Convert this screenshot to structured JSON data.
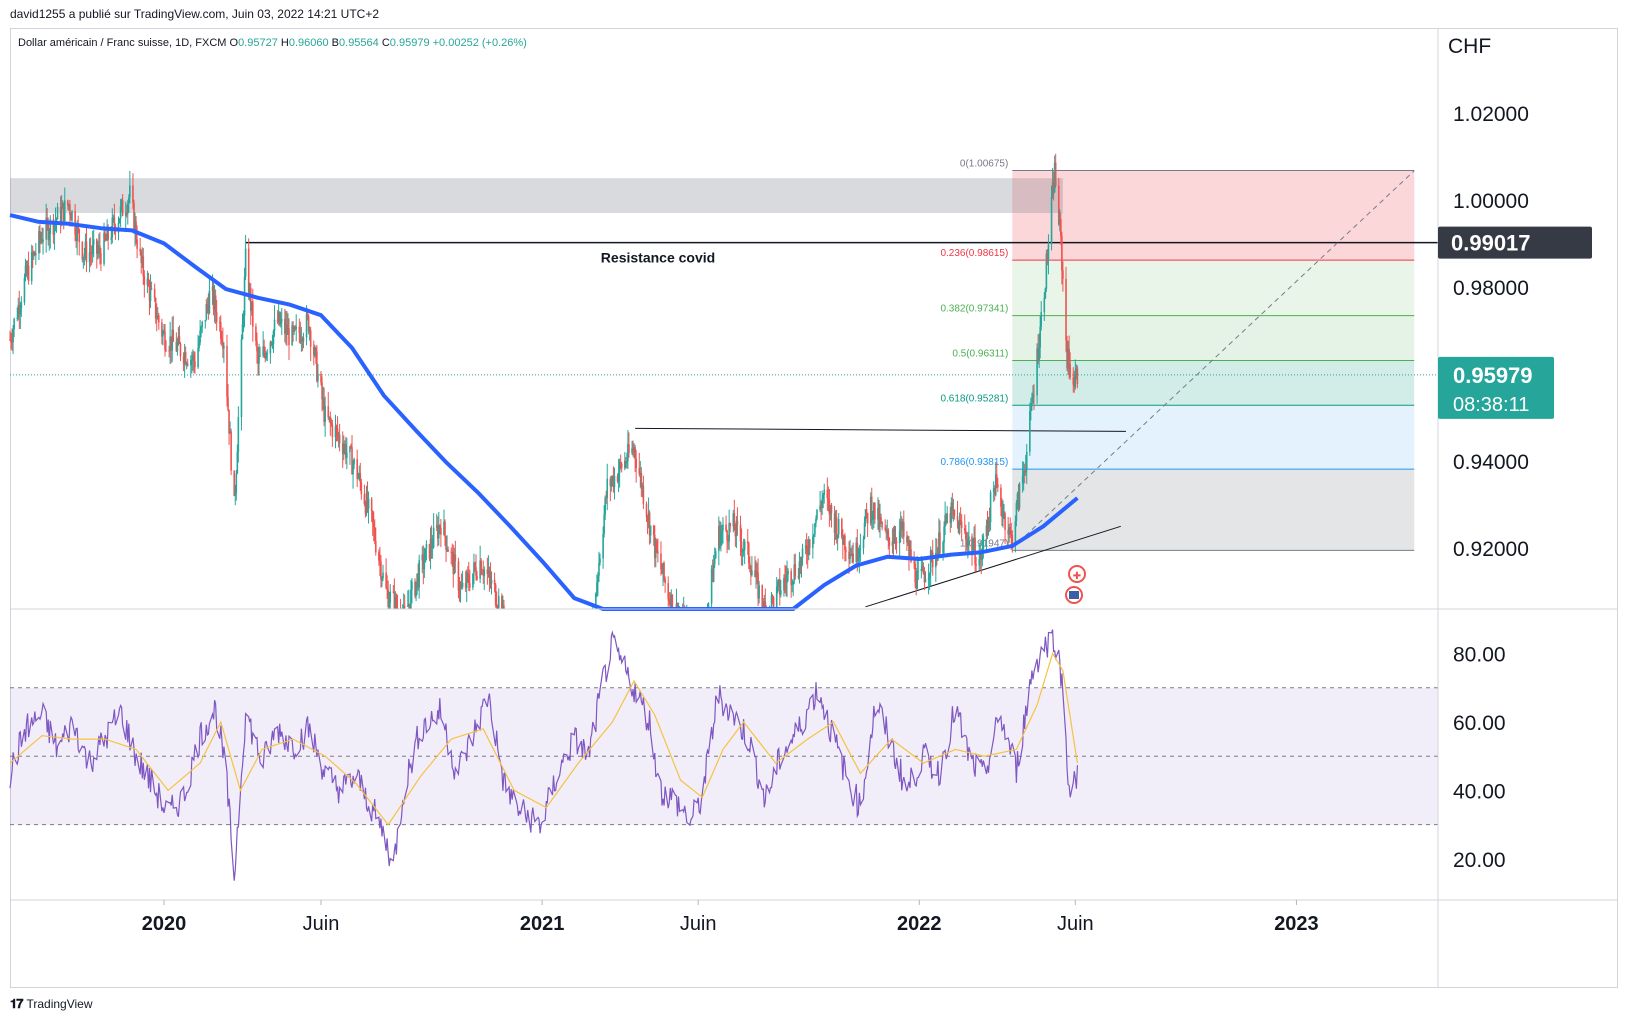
{
  "header": {
    "publish_text": "david1255 a publié sur TradingView.com, Juin 03, 2022 14:21 UTC+2",
    "symbol_title": "Dollar américain / Franc suisse, 1D, FXCM",
    "ohlc": [
      {
        "k": "O",
        "v": "0.95727"
      },
      {
        "k": "H",
        "v": "0.96060"
      },
      {
        "k": "B",
        "v": "0.95564"
      },
      {
        "k": "C",
        "v": "0.95979"
      }
    ],
    "change": "+0.00252 (+0.26%)"
  },
  "brand": {
    "logo": "𝟏𝟕",
    "name": "TradingView"
  },
  "colors": {
    "up": "#26a69a",
    "down": "#ef5350",
    "ma": "#2962ff",
    "rsi": "#7e57c2",
    "rsi_ma": "#f5c242",
    "price_badge": "#26a69a",
    "level_badge": "#363a45",
    "fib_red": "#f23645",
    "fib_green": "#4caf50",
    "fib_blue": "#2196f3",
    "fib_grey": "#9598a1"
  },
  "chart_data": {
    "type": "candlestick",
    "currency": "CHF",
    "price_axis": {
      "ylim": [
        0.906,
        1.0395
      ],
      "ticks": [
        "1.02000",
        "1.00000",
        "0.98000",
        "0.94000",
        "0.92000"
      ],
      "tick_values": [
        1.02,
        1.0,
        0.98,
        0.94,
        0.92
      ]
    },
    "time_axis": {
      "ticks": [
        {
          "label": "2020",
          "date": "2020-01-01",
          "bold": true
        },
        {
          "label": "Juin",
          "date": "2020-06-01",
          "bold": false
        },
        {
          "label": "2021",
          "date": "2021-01-01",
          "bold": true
        },
        {
          "label": "Juin",
          "date": "2021-06-01",
          "bold": false
        },
        {
          "label": "2022",
          "date": "2022-01-01",
          "bold": true
        },
        {
          "label": "Juin",
          "date": "2022-06-01",
          "bold": false
        },
        {
          "label": "2023",
          "date": "2023-01-01",
          "bold": true
        }
      ],
      "xlim": [
        "2019-08-05",
        "2023-05-18"
      ]
    },
    "last_price": {
      "value": 0.95979,
      "label": "0.95979",
      "countdown": "08:38:11"
    },
    "horizontal_level": {
      "value": 0.99017,
      "label": "0.99017"
    },
    "price_path": [
      [
        "2019-08-05",
        0.968
      ],
      [
        "2019-08-20",
        0.982
      ],
      [
        "2019-09-05",
        0.992
      ],
      [
        "2019-09-20",
        0.996
      ],
      [
        "2019-10-01",
        0.999
      ],
      [
        "2019-10-15",
        0.988
      ],
      [
        "2019-11-01",
        0.988
      ],
      [
        "2019-11-15",
        0.995
      ],
      [
        "2019-11-29",
        1.001
      ],
      [
        "2019-12-10",
        0.985
      ],
      [
        "2019-12-31",
        0.969
      ],
      [
        "2020-01-15",
        0.966
      ],
      [
        "2020-01-31",
        0.963
      ],
      [
        "2020-02-15",
        0.979
      ],
      [
        "2020-02-28",
        0.968
      ],
      [
        "2020-03-09",
        0.929
      ],
      [
        "2020-03-20",
        0.986
      ],
      [
        "2020-04-01",
        0.962
      ],
      [
        "2020-04-20",
        0.972
      ],
      [
        "2020-05-05",
        0.968
      ],
      [
        "2020-05-20",
        0.972
      ],
      [
        "2020-06-05",
        0.95
      ],
      [
        "2020-06-20",
        0.945
      ],
      [
        "2020-07-05",
        0.938
      ],
      [
        "2020-07-20",
        0.926
      ],
      [
        "2020-08-03",
        0.91
      ],
      [
        "2020-08-20",
        0.904
      ],
      [
        "2020-09-05",
        0.915
      ],
      [
        "2020-09-25",
        0.926
      ],
      [
        "2020-10-15",
        0.91
      ],
      [
        "2020-11-02",
        0.917
      ],
      [
        "2020-11-20",
        0.908
      ],
      [
        "2020-12-10",
        0.889
      ],
      [
        "2020-12-31",
        0.885
      ],
      [
        "2021-01-15",
        0.889
      ],
      [
        "2021-02-01",
        0.895
      ],
      [
        "2021-02-15",
        0.896
      ],
      [
        "2021-03-05",
        0.934
      ],
      [
        "2021-03-31",
        0.943
      ],
      [
        "2021-04-20",
        0.92
      ],
      [
        "2021-05-05",
        0.908
      ],
      [
        "2021-05-20",
        0.902
      ],
      [
        "2021-06-05",
        0.897
      ],
      [
        "2021-06-20",
        0.923
      ],
      [
        "2021-07-05",
        0.925
      ],
      [
        "2021-07-20",
        0.918
      ],
      [
        "2021-08-05",
        0.905
      ],
      [
        "2021-08-25",
        0.913
      ],
      [
        "2021-09-10",
        0.917
      ],
      [
        "2021-09-30",
        0.932
      ],
      [
        "2021-10-15",
        0.924
      ],
      [
        "2021-10-31",
        0.918
      ],
      [
        "2021-11-15",
        0.93
      ],
      [
        "2021-11-30",
        0.922
      ],
      [
        "2021-12-15",
        0.924
      ],
      [
        "2021-12-31",
        0.912
      ],
      [
        "2022-01-15",
        0.918
      ],
      [
        "2022-01-31",
        0.928
      ],
      [
        "2022-02-15",
        0.923
      ],
      [
        "2022-03-01",
        0.917
      ],
      [
        "2022-03-15",
        0.935
      ],
      [
        "2022-03-31",
        0.922
      ],
      [
        "2022-04-15",
        0.942
      ],
      [
        "2022-04-30",
        0.975
      ],
      [
        "2022-05-06",
        0.99
      ],
      [
        "2022-05-12",
        1.0067
      ],
      [
        "2022-05-18",
        0.99
      ],
      [
        "2022-05-24",
        0.964
      ],
      [
        "2022-05-31",
        0.958
      ],
      [
        "2022-06-03",
        0.9598
      ]
    ],
    "moving_average": [
      [
        "2019-08-05",
        0.9965
      ],
      [
        "2019-09-01",
        0.995
      ],
      [
        "2019-10-01",
        0.9945
      ],
      [
        "2019-11-01",
        0.9935
      ],
      [
        "2019-12-01",
        0.993
      ],
      [
        "2020-01-01",
        0.99
      ],
      [
        "2020-02-01",
        0.9845
      ],
      [
        "2020-03-01",
        0.9795
      ],
      [
        "2020-04-01",
        0.9775
      ],
      [
        "2020-05-01",
        0.976
      ],
      [
        "2020-06-01",
        0.9735
      ],
      [
        "2020-07-01",
        0.966
      ],
      [
        "2020-08-01",
        0.955
      ],
      [
        "2020-09-01",
        0.947
      ],
      [
        "2020-10-01",
        0.9395
      ],
      [
        "2020-11-01",
        0.9325
      ],
      [
        "2020-12-01",
        0.925
      ],
      [
        "2021-01-01",
        0.917
      ],
      [
        "2021-02-01",
        0.9085
      ],
      [
        "2021-03-01",
        0.905
      ],
      [
        "2021-04-01",
        0.9035
      ],
      [
        "2021-05-01",
        0.902
      ],
      [
        "2021-06-01",
        0.9013
      ],
      [
        "2021-07-01",
        0.902
      ],
      [
        "2021-08-01",
        0.902
      ],
      [
        "2021-09-01",
        0.904
      ],
      [
        "2021-10-01",
        0.9115
      ],
      [
        "2021-11-01",
        0.916
      ],
      [
        "2021-12-01",
        0.918
      ],
      [
        "2022-01-01",
        0.9175
      ],
      [
        "2022-02-01",
        0.9185
      ],
      [
        "2022-03-01",
        0.919
      ],
      [
        "2022-04-01",
        0.9205
      ],
      [
        "2022-05-01",
        0.925
      ],
      [
        "2022-06-03",
        0.9315
      ]
    ],
    "gray_zone": {
      "from": "2019-08-05",
      "to": "2022-05-20",
      "low": 0.997,
      "high": 1.005
    },
    "resistance_line": {
      "from": "2020-03-20",
      "to": "2023-05-18",
      "value": 0.99017,
      "label": "Resistance covid"
    },
    "neckline": {
      "from": [
        "2021-04-01",
        0.9475
      ],
      "to": [
        "2022-07-20",
        0.9468
      ]
    },
    "support_trendline": {
      "from": [
        "2021-11-10",
        0.9065
      ],
      "to": [
        "2022-07-15",
        0.925
      ]
    },
    "dashed_trendline": {
      "from": [
        "2022-04-01",
        0.92
      ],
      "to": [
        "2023-04-25",
        1.0067
      ]
    },
    "fibonacci": {
      "from": "2022-04-01",
      "to": "2023-04-25",
      "levels": [
        {
          "label": "0(1.00675)",
          "value": 1.00675,
          "color": "#787b86"
        },
        {
          "label": "0.236(0.98615)",
          "value": 0.98615,
          "color": "#f23645"
        },
        {
          "label": "0.382(0.97341)",
          "value": 0.97341,
          "color": "#4caf50"
        },
        {
          "label": "0.5(0.96311)",
          "value": 0.96311,
          "color": "#4caf50"
        },
        {
          "label": "0.618(0.95281)",
          "value": 0.95281,
          "color": "#089981"
        },
        {
          "label": "0.786(0.93815)",
          "value": 0.93815,
          "color": "#2196f3"
        },
        {
          "label": "1(0.91947)",
          "value": 0.91947,
          "color": "#787b86"
        }
      ]
    },
    "rsi": {
      "ylim": [
        8,
        93
      ],
      "ticks": [
        "80.00",
        "60.00",
        "40.00",
        "20.00"
      ],
      "tick_values": [
        80,
        60,
        40,
        20
      ],
      "band": [
        30,
        70
      ],
      "mid": 50,
      "series": [
        [
          "2019-08-05",
          45
        ],
        [
          "2019-08-20",
          58
        ],
        [
          "2019-09-05",
          62
        ],
        [
          "2019-09-20",
          52
        ],
        [
          "2019-10-05",
          60
        ],
        [
          "2019-10-20",
          48
        ],
        [
          "2019-11-05",
          55
        ],
        [
          "2019-11-20",
          63
        ],
        [
          "2019-12-05",
          50
        ],
        [
          "2019-12-20",
          42
        ],
        [
          "2020-01-05",
          33
        ],
        [
          "2020-01-20",
          38
        ],
        [
          "2020-02-05",
          56
        ],
        [
          "2020-02-20",
          64
        ],
        [
          "2020-03-01",
          45
        ],
        [
          "2020-03-09",
          15
        ],
        [
          "2020-03-20",
          63
        ],
        [
          "2020-04-05",
          48
        ],
        [
          "2020-04-20",
          58
        ],
        [
          "2020-05-05",
          53
        ],
        [
          "2020-05-20",
          58
        ],
        [
          "2020-06-05",
          45
        ],
        [
          "2020-06-20",
          40
        ],
        [
          "2020-07-05",
          44
        ],
        [
          "2020-07-20",
          35
        ],
        [
          "2020-08-01",
          27
        ],
        [
          "2020-08-10",
          18
        ],
        [
          "2020-08-20",
          40
        ],
        [
          "2020-09-05",
          58
        ],
        [
          "2020-09-25",
          63
        ],
        [
          "2020-10-10",
          45
        ],
        [
          "2020-10-25",
          55
        ],
        [
          "2020-11-10",
          68
        ],
        [
          "2020-11-25",
          42
        ],
        [
          "2020-12-10",
          34
        ],
        [
          "2020-12-31",
          30
        ],
        [
          "2021-01-15",
          44
        ],
        [
          "2021-02-01",
          55
        ],
        [
          "2021-02-15",
          50
        ],
        [
          "2021-03-01",
          72
        ],
        [
          "2021-03-10",
          82
        ],
        [
          "2021-03-31",
          70
        ],
        [
          "2021-04-15",
          60
        ],
        [
          "2021-04-25",
          40
        ],
        [
          "2021-05-10",
          37
        ],
        [
          "2021-05-25",
          31
        ],
        [
          "2021-06-05",
          38
        ],
        [
          "2021-06-20",
          68
        ],
        [
          "2021-07-05",
          62
        ],
        [
          "2021-07-20",
          55
        ],
        [
          "2021-08-05",
          37
        ],
        [
          "2021-08-20",
          50
        ],
        [
          "2021-09-05",
          57
        ],
        [
          "2021-09-25",
          70
        ],
        [
          "2021-10-10",
          55
        ],
        [
          "2021-10-25",
          42
        ],
        [
          "2021-11-05",
          35
        ],
        [
          "2021-11-20",
          66
        ],
        [
          "2021-12-05",
          53
        ],
        [
          "2021-12-20",
          40
        ],
        [
          "2022-01-05",
          50
        ],
        [
          "2022-01-20",
          45
        ],
        [
          "2022-02-05",
          64
        ],
        [
          "2022-02-20",
          48
        ],
        [
          "2022-03-05",
          44
        ],
        [
          "2022-03-20",
          62
        ],
        [
          "2022-04-05",
          46
        ],
        [
          "2022-04-20",
          74
        ],
        [
          "2022-05-01",
          82
        ],
        [
          "2022-05-12",
          85
        ],
        [
          "2022-05-20",
          70
        ],
        [
          "2022-05-26",
          40
        ],
        [
          "2022-06-01",
          42
        ],
        [
          "2022-06-03",
          45
        ]
      ],
      "ma_series": [
        [
          "2019-08-05",
          48
        ],
        [
          "2019-09-05",
          56
        ],
        [
          "2019-10-05",
          55
        ],
        [
          "2019-11-05",
          55
        ],
        [
          "2019-12-05",
          52
        ],
        [
          "2020-01-05",
          40
        ],
        [
          "2020-02-05",
          48
        ],
        [
          "2020-02-25",
          60
        ],
        [
          "2020-03-15",
          40
        ],
        [
          "2020-04-05",
          52
        ],
        [
          "2020-05-05",
          55
        ],
        [
          "2020-06-05",
          50
        ],
        [
          "2020-07-05",
          42
        ],
        [
          "2020-08-05",
          30
        ],
        [
          "2020-09-05",
          44
        ],
        [
          "2020-10-05",
          55
        ],
        [
          "2020-11-05",
          58
        ],
        [
          "2020-12-05",
          40
        ],
        [
          "2021-01-05",
          35
        ],
        [
          "2021-02-05",
          48
        ],
        [
          "2021-03-10",
          60
        ],
        [
          "2021-03-31",
          72
        ],
        [
          "2021-04-20",
          62
        ],
        [
          "2021-05-15",
          43
        ],
        [
          "2021-06-05",
          38
        ],
        [
          "2021-06-25",
          52
        ],
        [
          "2021-07-15",
          60
        ],
        [
          "2021-08-15",
          48
        ],
        [
          "2021-09-15",
          55
        ],
        [
          "2021-10-10",
          60
        ],
        [
          "2021-11-05",
          45
        ],
        [
          "2021-12-05",
          55
        ],
        [
          "2022-01-05",
          48
        ],
        [
          "2022-02-05",
          52
        ],
        [
          "2022-03-05",
          50
        ],
        [
          "2022-04-05",
          52
        ],
        [
          "2022-04-25",
          65
        ],
        [
          "2022-05-10",
          80
        ],
        [
          "2022-05-20",
          75
        ],
        [
          "2022-06-03",
          48
        ]
      ]
    }
  }
}
